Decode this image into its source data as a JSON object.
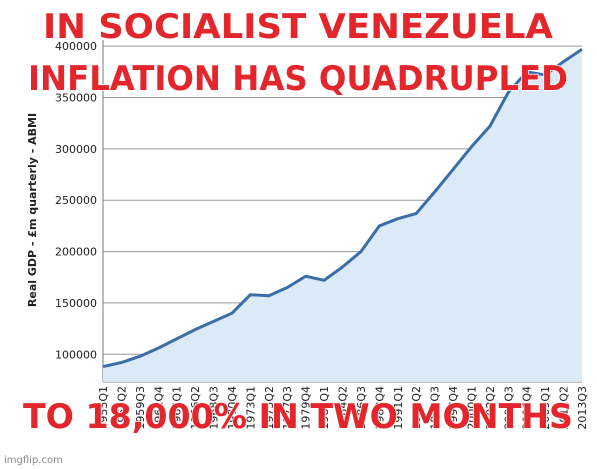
{
  "chart_data": {
    "type": "line",
    "y_label": "Real GDP - £m quarterly - ABMI",
    "x": [
      "1955Q1",
      "1957Q2",
      "1959Q3",
      "1961Q4",
      "1964Q1",
      "1966Q2",
      "1968Q3",
      "1970Q4",
      "1973Q1",
      "1975Q2",
      "1977Q3",
      "1979Q4",
      "1982Q1",
      "1984Q2",
      "1986Q3",
      "1988Q4",
      "1991Q1",
      "1993Q2",
      "1995Q3",
      "1997Q4",
      "2000Q1",
      "2002Q2",
      "2004Q3",
      "2006Q4",
      "2009Q1",
      "2011Q2",
      "2013Q3"
    ],
    "series": [
      {
        "color": "#3a6ea8",
        "values": [
          88000,
          92000,
          98000,
          106000,
          115000,
          124000,
          132000,
          140000,
          158000,
          157000,
          165000,
          176000,
          172000,
          185000,
          200000,
          225000,
          232000,
          237000,
          258000,
          280000,
          302000,
          322000,
          355000,
          375000,
          372000,
          385000,
          397000
        ]
      }
    ],
    "ylim": [
      73000,
      406000
    ],
    "yticks": [
      100000,
      150000,
      200000,
      250000,
      300000,
      350000,
      400000
    ],
    "grid": true,
    "area_color": "#dce9f7"
  },
  "meme": {
    "top_lines": [
      "IN SOCIALIST VENEZUELA",
      "INFLATION HAS QUADRUPLED"
    ],
    "bottom_line": "TO 18,000% IN TWO MONTHS",
    "watermark": "imgflip.com"
  }
}
